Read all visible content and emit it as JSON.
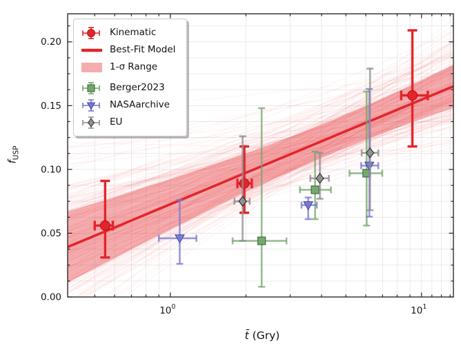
{
  "figure": {
    "background": "#ffffff"
  },
  "axes": {
    "x": {
      "label_main": "t̄",
      "label_unit": "(Gry)",
      "scale": "log",
      "lim": [
        0.39,
        13.4
      ],
      "major_ticks": [
        {
          "value": 1,
          "base": "10",
          "exp": "0"
        },
        {
          "value": 10,
          "base": "10",
          "exp": "1"
        }
      ],
      "minor_ticks": [
        0.5,
        0.6,
        0.7,
        0.8,
        0.9,
        2,
        3,
        4,
        5,
        6,
        7,
        8,
        9,
        11,
        12,
        13
      ]
    },
    "y": {
      "label_main": "f",
      "label_sub": "USP",
      "scale": "linear",
      "lim": [
        0,
        0.222
      ],
      "major_ticks": [
        {
          "value": 0.0,
          "label": "0.00"
        },
        {
          "value": 0.05,
          "label": "0.05"
        },
        {
          "value": 0.1,
          "label": "0.10"
        },
        {
          "value": 0.15,
          "label": "0.15"
        },
        {
          "value": 0.2,
          "label": "0.20"
        }
      ],
      "minor_step": 0.0125
    },
    "grid_color": "#dcdcdc",
    "tick_color": "#222222",
    "spine_color": "#2a2a2a",
    "tick_label_color": "#161616"
  },
  "legend": {
    "items": [
      {
        "key": "kinematic",
        "label": "Kinematic",
        "type": "errbar-circle"
      },
      {
        "key": "bestfit",
        "label": "Best-Fit Model",
        "type": "line"
      },
      {
        "key": "sigma",
        "label": "1-σ Range",
        "type": "band"
      },
      {
        "key": "berger",
        "label": "Berger2023",
        "type": "errbar-square"
      },
      {
        "key": "nasa",
        "label": "NASAarchive",
        "type": "errbar-triangle"
      },
      {
        "key": "eu",
        "label": "EU",
        "type": "errbar-diamond"
      }
    ]
  },
  "chart_data": {
    "type": "scatter",
    "title": "",
    "xlabel": "t̄ (Gry)",
    "ylabel": "f_USP",
    "x_scale": "log",
    "xlim": [
      0.39,
      13.4
    ],
    "ylim": [
      0,
      0.222
    ],
    "grid": true,
    "legend_position": "upper left",
    "best_fit": {
      "model": "f = f0 + slope * (log10(t) - pivot)",
      "pivot_log10_t": 0.65,
      "f_at_pivot": 0.126,
      "slope_per_dex": 0.082,
      "sigma_f_at_pivot": 0.013,
      "sigma_slope": 0.023,
      "n_posterior_draws": 200,
      "seed": 42,
      "line_color": "#e2252b",
      "band_color": "#e8474d",
      "band_alpha": 0.42,
      "spaghetti_alpha": 0.05
    },
    "series": [
      {
        "name": "Kinematic",
        "key": "kinematic",
        "marker": "circle",
        "color": "#e2252b",
        "edge": "#b5131a",
        "err_opacity": 1.0,
        "err_width": 3.4,
        "cap_half": 7,
        "points": [
          {
            "t": 0.55,
            "t_lo": 0.5,
            "t_hi": 0.59,
            "f": 0.056,
            "f_lo": 0.031,
            "f_hi": 0.091
          },
          {
            "t": 1.97,
            "t_lo": 1.85,
            "t_hi": 2.11,
            "f": 0.089,
            "f_lo": 0.066,
            "f_hi": 0.118
          },
          {
            "t": 9.2,
            "t_lo": 8.3,
            "t_hi": 10.6,
            "f": 0.158,
            "f_lo": 0.118,
            "f_hi": 0.209
          }
        ]
      },
      {
        "name": "Berger2023",
        "key": "berger",
        "marker": "square",
        "color": "#74a56e",
        "edge": "#3f6a3b",
        "err_opacity": 0.75,
        "err_width": 2.6,
        "cap_half": 5,
        "points": [
          {
            "t": 2.31,
            "t_lo": 1.77,
            "t_hi": 2.9,
            "f": 0.044,
            "f_lo": 0.008,
            "f_hi": 0.148
          },
          {
            "t": 3.77,
            "t_lo": 3.28,
            "t_hi": 4.36,
            "f": 0.084,
            "f_lo": 0.061,
            "f_hi": 0.114
          },
          {
            "t": 6.05,
            "t_lo": 5.17,
            "t_hi": 6.98,
            "f": 0.097,
            "f_lo": 0.056,
            "f_hi": 0.161
          }
        ]
      },
      {
        "name": "NASAarchive",
        "key": "nasa",
        "marker": "triangle-down",
        "color": "#7577cf",
        "edge": "#4648ad",
        "err_opacity": 0.75,
        "err_width": 2.6,
        "cap_half": 5,
        "points": [
          {
            "t": 1.09,
            "t_lo": 0.9,
            "t_hi": 1.27,
            "f": 0.046,
            "f_lo": 0.026,
            "f_hi": 0.076
          },
          {
            "t": 3.54,
            "t_lo": 3.33,
            "t_hi": 3.83,
            "f": 0.072,
            "f_lo": 0.061,
            "f_hi": 0.078
          },
          {
            "t": 6.2,
            "t_lo": 5.75,
            "t_hi": 6.73,
            "f": 0.103,
            "f_lo": 0.063,
            "f_hi": 0.163
          }
        ]
      },
      {
        "name": "EU",
        "key": "eu",
        "marker": "diamond",
        "color": "#8f8f8f",
        "edge": "#2e2e2e",
        "err_opacity": 0.8,
        "err_width": 2.6,
        "cap_half": 5,
        "points": [
          {
            "t": 1.94,
            "t_lo": 1.8,
            "t_hi": 2.07,
            "f": 0.075,
            "f_lo": 0.044,
            "f_hi": 0.126
          },
          {
            "t": 3.94,
            "t_lo": 3.61,
            "t_hi": 4.28,
            "f": 0.093,
            "f_lo": 0.077,
            "f_hi": 0.113
          },
          {
            "t": 6.24,
            "t_lo": 5.78,
            "t_hi": 6.73,
            "f": 0.113,
            "f_lo": 0.068,
            "f_hi": 0.179
          }
        ]
      }
    ]
  }
}
